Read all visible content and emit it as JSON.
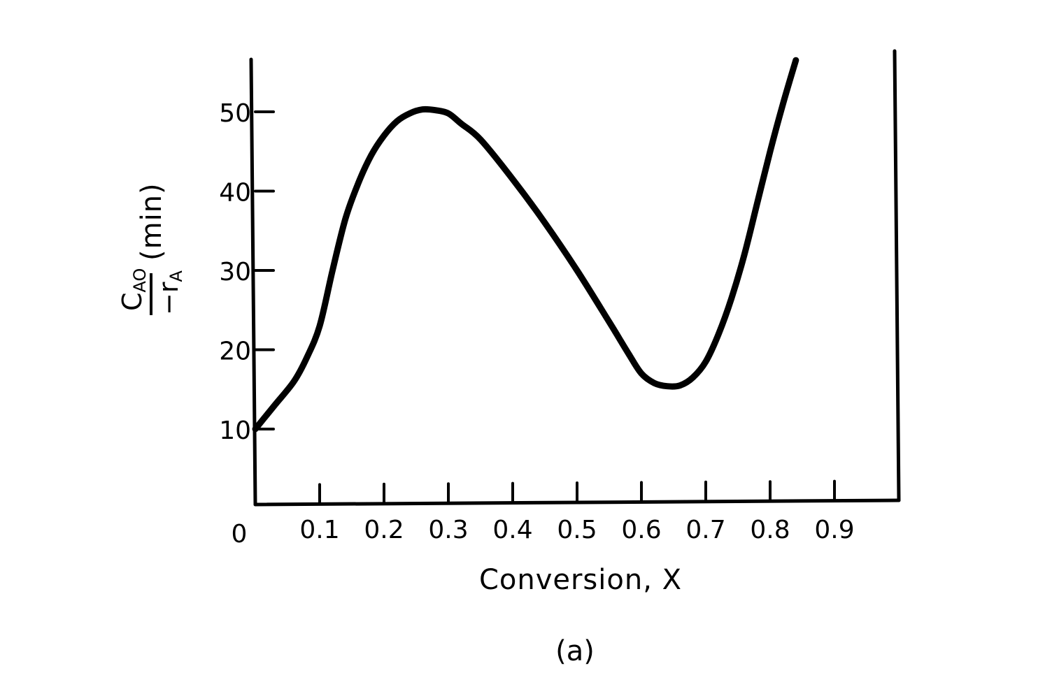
{
  "chart_data": {
    "type": "line",
    "xlabel": "Conversion, X",
    "ylabel": {
      "numerator": "C",
      "numerator_sub": "AO",
      "denominator": "−r",
      "denominator_sub": "A",
      "unit": "(min)"
    },
    "caption": "(a)",
    "xlim": [
      0,
      1.0
    ],
    "ylim": [
      0,
      55
    ],
    "x_ticks": [
      0.1,
      0.2,
      0.3,
      0.4,
      0.5,
      0.6,
      0.7,
      0.8,
      0.9
    ],
    "x_tick_labels": [
      "0.1",
      "0.2",
      "0.3",
      "0.4",
      "0.5",
      "0.6",
      "0.7",
      "0.8",
      "0.9"
    ],
    "origin_label": "0",
    "y_ticks": [
      10,
      20,
      30,
      40,
      50
    ],
    "y_tick_labels": [
      "10",
      "20",
      "30",
      "40",
      "50"
    ],
    "grid": false,
    "series": [
      {
        "x": [
          0.0,
          0.03,
          0.06,
          0.08,
          0.1,
          0.12,
          0.14,
          0.16,
          0.18,
          0.2,
          0.22,
          0.24,
          0.26,
          0.28,
          0.3,
          0.32,
          0.35,
          0.4,
          0.45,
          0.5,
          0.55,
          0.58,
          0.6,
          0.62,
          0.64,
          0.66,
          0.68,
          0.7,
          0.72,
          0.74,
          0.76,
          0.78,
          0.8,
          0.82,
          0.84
        ],
        "y": [
          10.0,
          13.0,
          16.0,
          19.0,
          23.0,
          30.0,
          36.5,
          41.0,
          44.5,
          47.0,
          48.8,
          49.8,
          50.3,
          50.2,
          49.8,
          48.5,
          46.5,
          41.5,
          36.0,
          30.0,
          23.5,
          19.5,
          17.0,
          15.8,
          15.4,
          15.5,
          16.5,
          18.5,
          22.0,
          26.5,
          32.0,
          38.5,
          45.0,
          51.0,
          56.5
        ]
      }
    ]
  }
}
